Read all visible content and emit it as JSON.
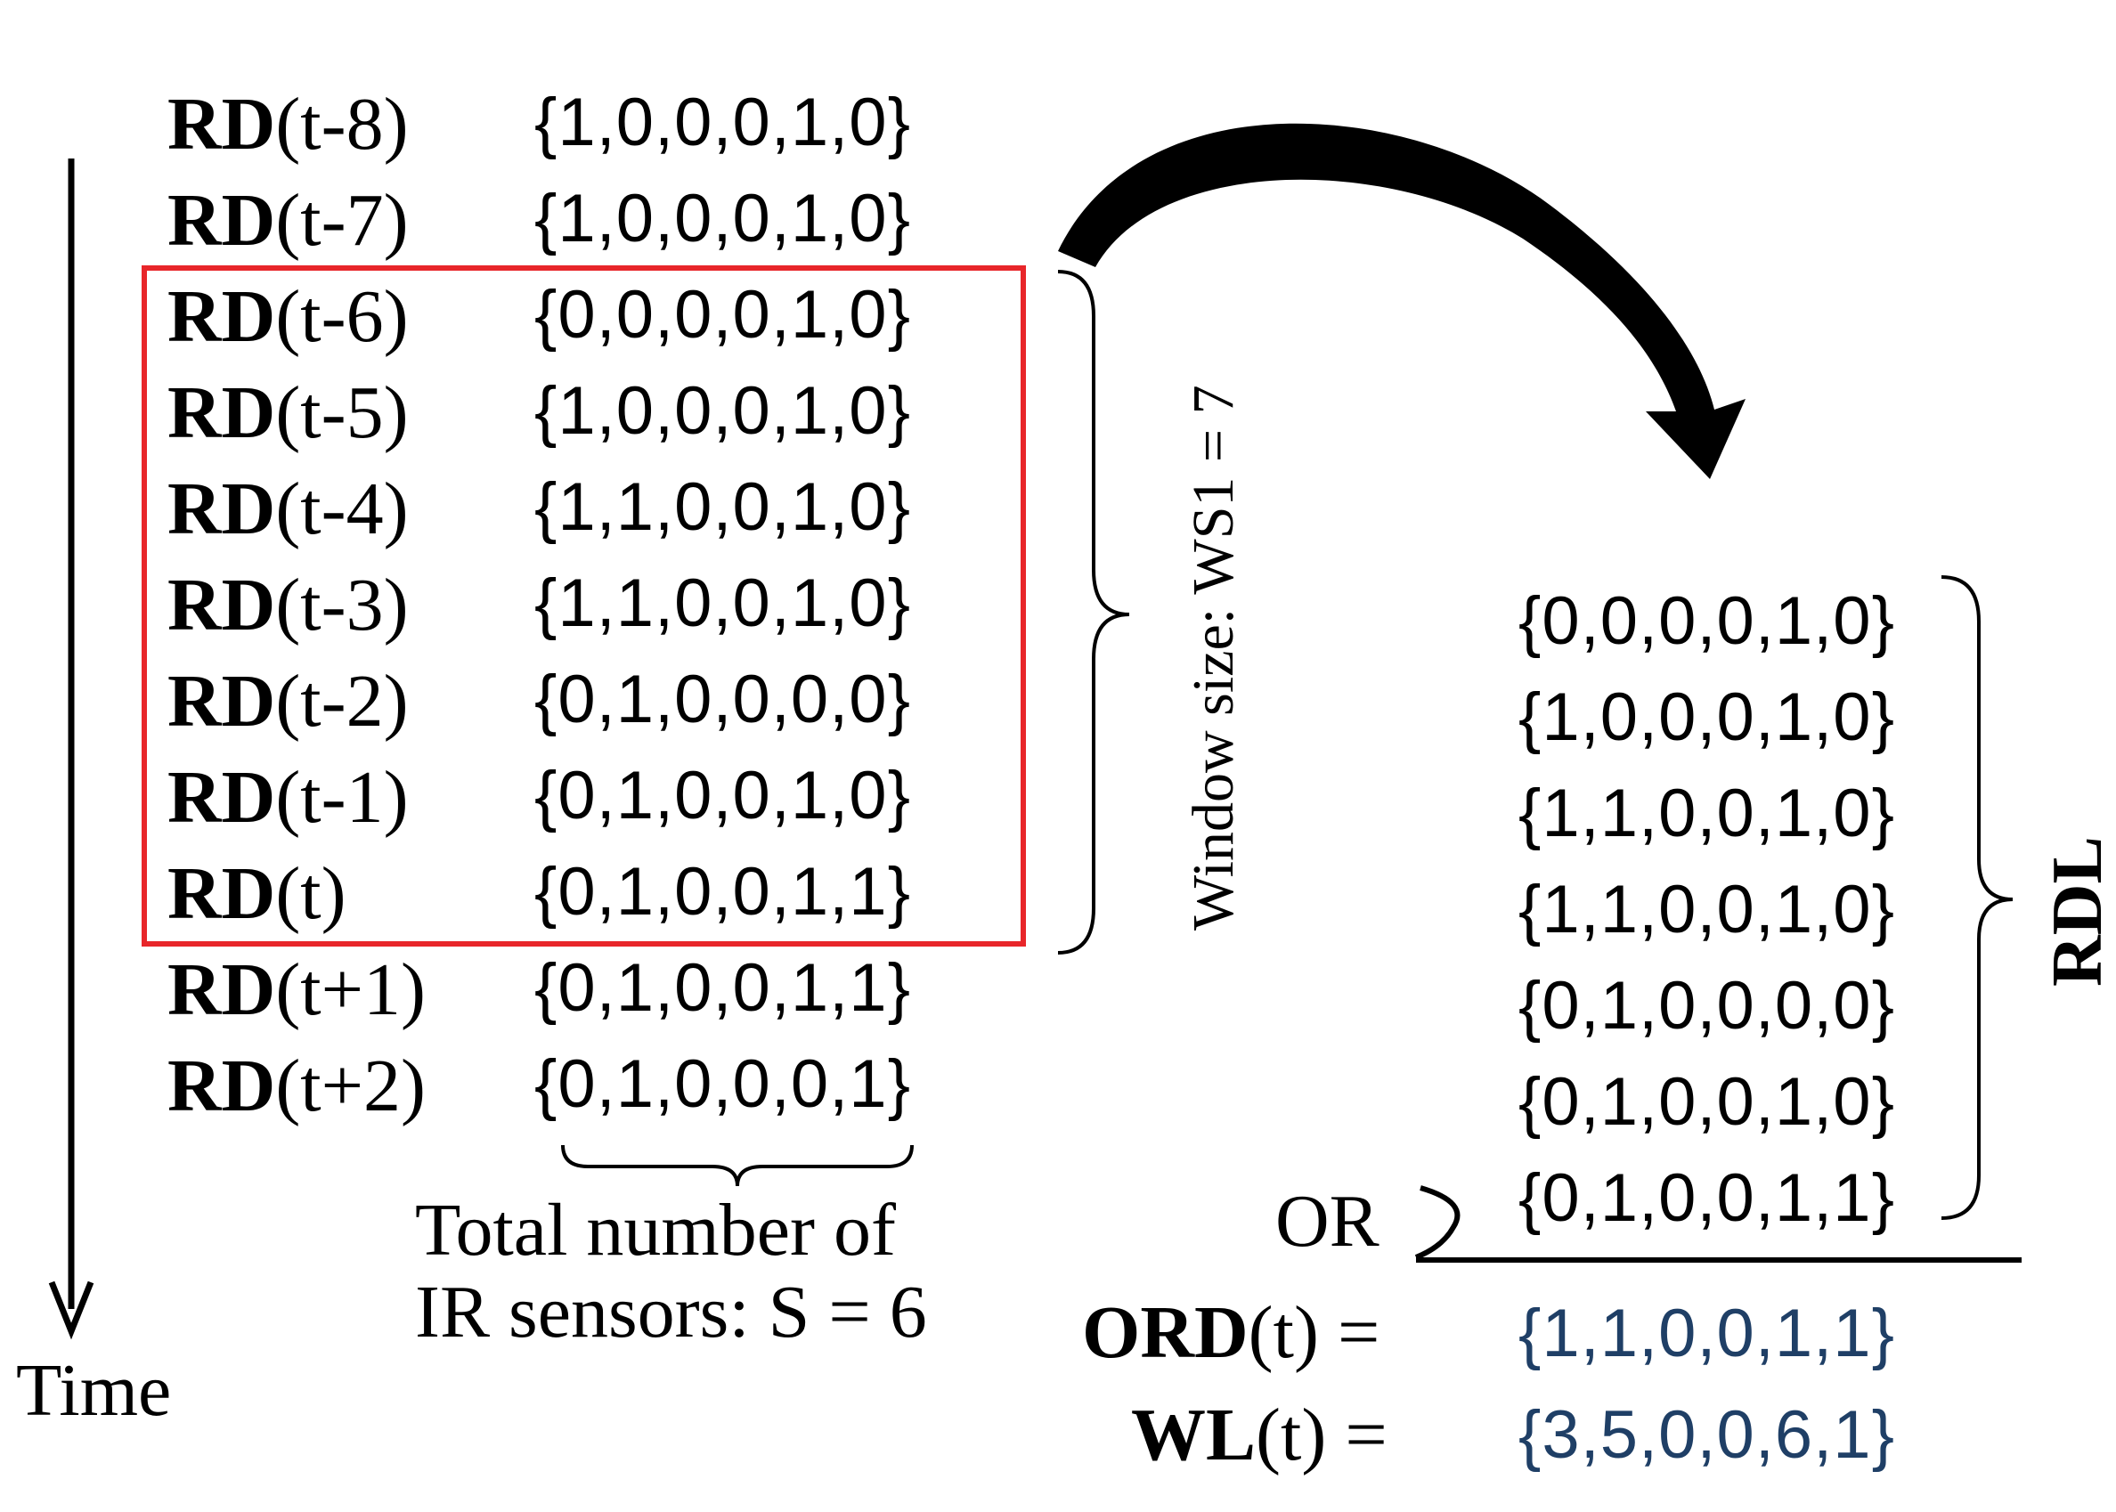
{
  "rows": [
    {
      "prefix": "RD",
      "index": "(t-8)",
      "vector": "{1,0,0,0,1,0}"
    },
    {
      "prefix": "RD",
      "index": "(t-7)",
      "vector": "{1,0,0,0,1,0}"
    },
    {
      "prefix": "RD",
      "index": "(t-6)",
      "vector": "{0,0,0,0,1,0}"
    },
    {
      "prefix": "RD",
      "index": "(t-5)",
      "vector": "{1,0,0,0,1,0}"
    },
    {
      "prefix": "RD",
      "index": "(t-4)",
      "vector": "{1,1,0,0,1,0}"
    },
    {
      "prefix": "RD",
      "index": "(t-3)",
      "vector": "{1,1,0,0,1,0}"
    },
    {
      "prefix": "RD",
      "index": "(t-2)",
      "vector": "{0,1,0,0,0,0}"
    },
    {
      "prefix": "RD",
      "index": "(t-1)",
      "vector": "{0,1,0,0,1,0}"
    },
    {
      "prefix": "RD",
      "index": "(t)",
      "vector": "{0,1,0,0,1,1}"
    },
    {
      "prefix": "RD",
      "index": "(t+1)",
      "vector": "{0,1,0,0,1,1}"
    },
    {
      "prefix": "RD",
      "index": "(t+2)",
      "vector": "{0,1,0,0,0,1}"
    }
  ],
  "time_label": "Time",
  "window_label": "Window size: WS1 = 7",
  "sensors_label": {
    "line1": "Total number  of",
    "line2": "IR sensors:  S = 6"
  },
  "rdl": {
    "label": "RDL",
    "vectors": [
      "{0,0,0,0,1,0}",
      "{1,0,0,0,1,0}",
      "{1,1,0,0,1,0}",
      "{1,1,0,0,1,0}",
      "{0,1,0,0,0,0}",
      "{0,1,0,0,1,0}",
      "{0,1,0,0,1,1}"
    ]
  },
  "or_label": "OR",
  "results": [
    {
      "prefix": "ORD",
      "suffix": "(t) =",
      "vector": "{1,1,0,0,1,1}"
    },
    {
      "prefix": "WL",
      "suffix": "(t) =",
      "vector": "{3,5,0,0,6,1}"
    }
  ],
  "colors": {
    "window_box": "#e8262a",
    "result_text": "#1f3f66",
    "ink": "#000000"
  }
}
